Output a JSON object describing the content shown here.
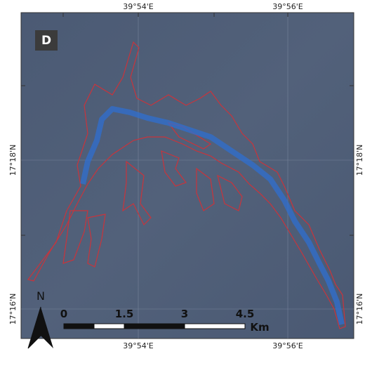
{
  "panel_label": "D",
  "lon_labels": [
    "39°54'E",
    "39°56'E"
  ],
  "lat_labels": [
    "17°18'N",
    "17°16'N"
  ],
  "north_label": "N",
  "scale_bar": {
    "labels": [
      "0",
      "1.5",
      "3",
      "4.5"
    ],
    "unit": "Km"
  }
}
